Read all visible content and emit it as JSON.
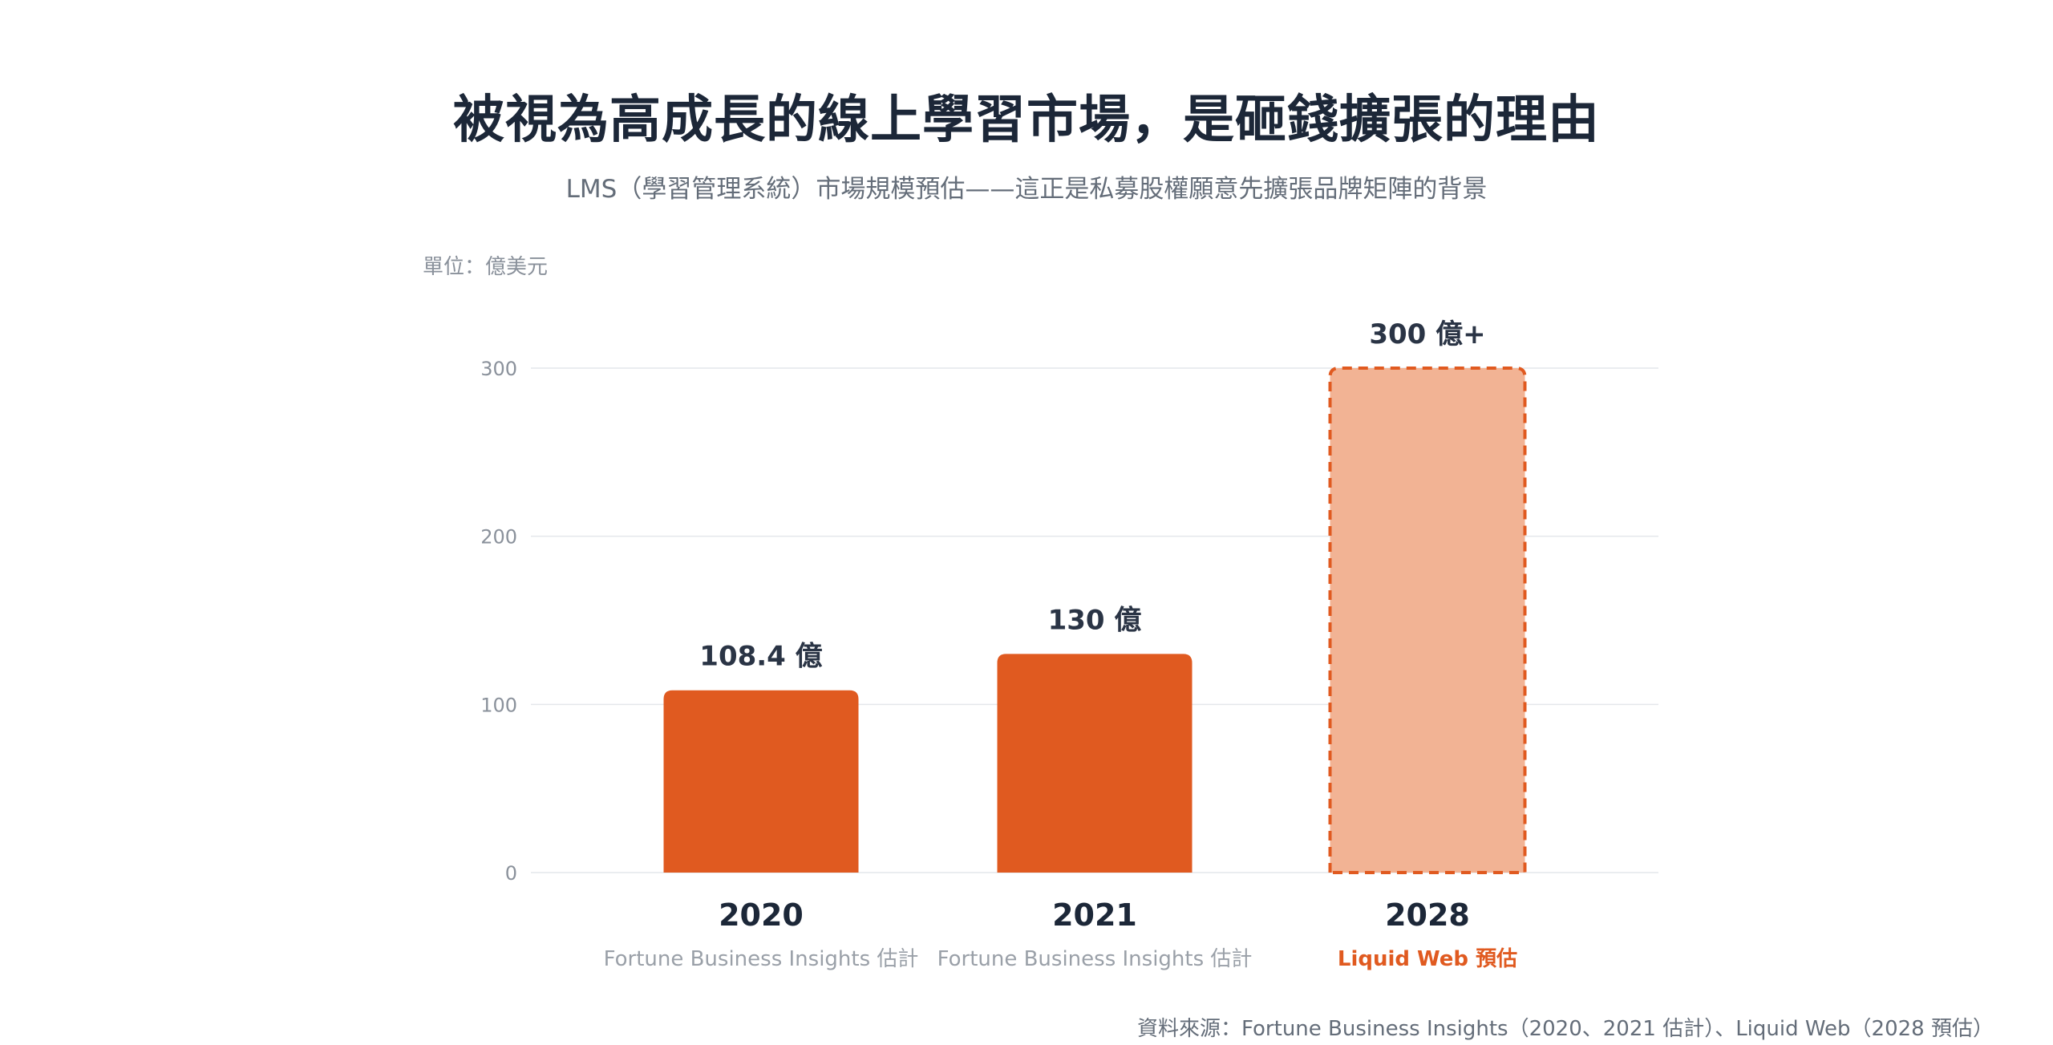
{
  "title": "被視為高成長的線上學習市場，是砸錢擴張的理由",
  "subtitle": "LMS（學習管理系統）市場規模預估——這正是私募股權願意先擴張品牌矩陣的背景",
  "unit_label": "單位：億美元",
  "source_note": "資料來源：Fortune Business Insights（2020、2021 估計）、Liquid Web（2028 預估）",
  "colors": {
    "bar_actual": "#e05a20",
    "bar_forecast_fill": "#f2b394",
    "bar_forecast_stroke": "#e05a20",
    "value_label": "#2a3445",
    "category_label": "#1c2738",
    "source_estimate": "#9aa0a8",
    "source_forecast": "#e05a20",
    "grid": "#e4e7eb",
    "tick": "#8a919b"
  },
  "chart_data": {
    "type": "bar",
    "title": "被視為高成長的線上學習市場，是砸錢擴張的理由",
    "subtitle": "LMS（學習管理系統）市場規模預估——這正是私募股權願意先擴張品牌矩陣的背景",
    "ylabel": "單位：億美元",
    "ylim": [
      0,
      300
    ],
    "yticks": [
      0,
      100,
      200,
      300
    ],
    "grid": true,
    "categories": [
      "2020",
      "2021",
      "2028"
    ],
    "values": [
      108.4,
      130,
      300
    ],
    "value_labels": [
      "108.4 億",
      "130 億",
      "300 億+"
    ],
    "sources": [
      "Fortune Business Insights 估計",
      "Fortune Business Insights 估計",
      "Liquid Web 預估"
    ],
    "forecast": [
      false,
      false,
      true
    ]
  }
}
